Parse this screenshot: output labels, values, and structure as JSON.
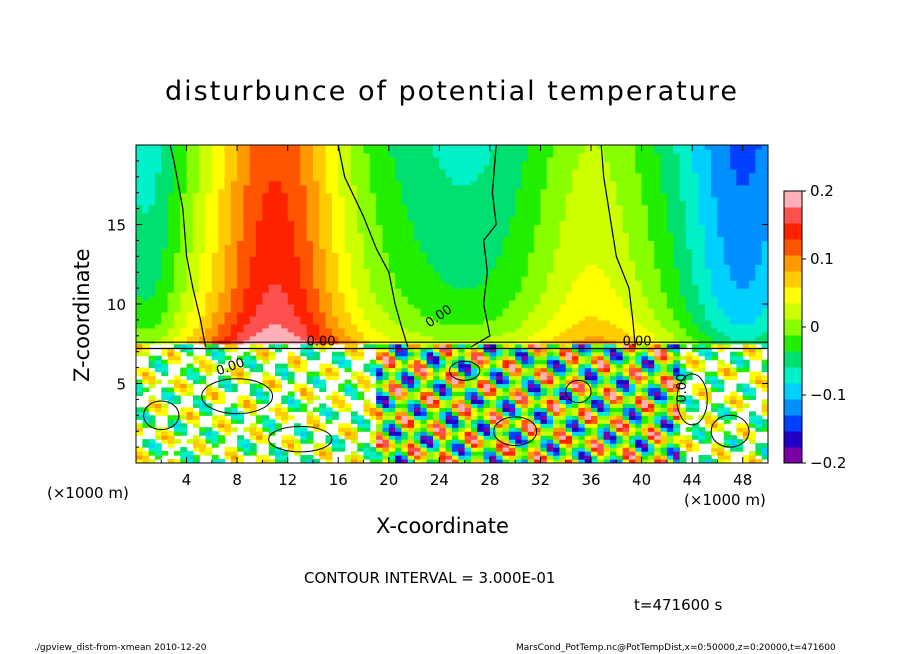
{
  "chart_data": {
    "type": "heatmap",
    "title": "disturbunce of potential temperature",
    "xlabel": "X-coordinate",
    "ylabel": "Z-coordinate",
    "x_unit": "(×1000 m)",
    "y_unit": "(×1000 m)",
    "xlim": [
      0,
      50
    ],
    "ylim": [
      0,
      20
    ],
    "x_ticks": [
      4,
      8,
      12,
      16,
      20,
      24,
      28,
      32,
      36,
      40,
      44,
      48
    ],
    "y_ticks": [
      5,
      10,
      15
    ],
    "colorbar": {
      "range": [
        -0.2,
        0.2
      ],
      "ticks": [
        "0.2",
        "0.1",
        "0",
        "−0.1",
        "−0.2"
      ],
      "tick_values": [
        0.2,
        0.1,
        0,
        -0.1,
        -0.2
      ]
    },
    "contour_labels": [
      "0.00",
      "0.00",
      "0.00",
      "0.00",
      "0.00"
    ],
    "contour_interval_text": "CONTOUR INTERVAL = 3.000E-01",
    "time_text": "t=471600 s"
  },
  "footer": {
    "left": "./gpview_dist-from-xmean 2010-12-20",
    "right": "MarsCond_PotTemp.nc@PotTempDist,x=0:50000,z=0:20000,t=471600"
  },
  "colors": {
    "palette": [
      "#7a00a8",
      "#2200c8",
      "#0040ff",
      "#0090ff",
      "#00d0ff",
      "#00f0c8",
      "#00e070",
      "#22ee00",
      "#88ff00",
      "#ccff00",
      "#ffff00",
      "#ffcc00",
      "#ff9900",
      "#ff5500",
      "#ff2200",
      "#ff5050",
      "#ffb0b8"
    ]
  }
}
